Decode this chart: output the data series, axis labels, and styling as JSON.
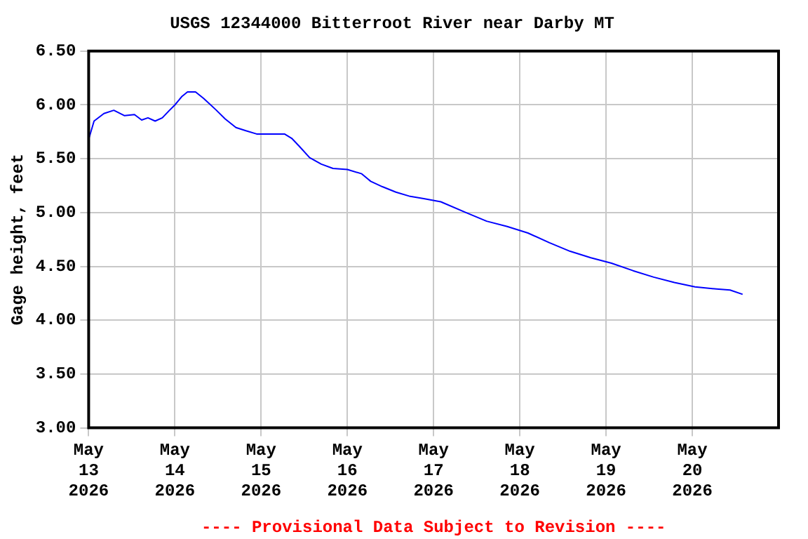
{
  "chart_data": {
    "type": "line",
    "title": "USGS 12344000 Bitterroot River near Darby MT",
    "ylabel": "Gage height, feet",
    "annotations": [
      "---- Provisional Data Subject to Revision ----"
    ],
    "x": [
      "2026-05-13T00:00",
      "2026-05-13T01:30",
      "2026-05-13T04:15",
      "2026-05-13T07:00",
      "2026-05-13T10:00",
      "2026-05-13T12:45",
      "2026-05-13T14:45",
      "2026-05-13T16:30",
      "2026-05-13T18:30",
      "2026-05-13T20:30",
      "2026-05-13T22:30",
      "2026-05-14T00:00",
      "2026-05-14T02:00",
      "2026-05-14T03:30",
      "2026-05-14T05:45",
      "2026-05-14T08:00",
      "2026-05-14T11:15",
      "2026-05-14T14:00",
      "2026-05-14T17:00",
      "2026-05-14T19:45",
      "2026-05-14T22:45",
      "2026-05-15T02:45",
      "2026-05-15T06:30",
      "2026-05-15T08:30",
      "2026-05-15T10:30",
      "2026-05-15T13:30",
      "2026-05-15T16:45",
      "2026-05-15T20:00",
      "2026-05-16T00:00",
      "2026-05-16T04:00",
      "2026-05-16T06:30",
      "2026-05-16T09:45",
      "2026-05-16T13:30",
      "2026-05-16T17:30",
      "2026-05-16T21:15",
      "2026-05-17T02:00",
      "2026-05-17T09:00",
      "2026-05-17T14:45",
      "2026-05-17T20:30",
      "2026-05-18T02:15",
      "2026-05-18T08:15",
      "2026-05-18T14:00",
      "2026-05-18T19:45",
      "2026-05-19T01:30",
      "2026-05-19T07:30",
      "2026-05-19T13:15",
      "2026-05-19T19:00",
      "2026-05-20T00:45",
      "2026-05-20T06:45",
      "2026-05-20T10:30",
      "2026-05-20T14:00"
    ],
    "series": [
      {
        "color": "#0000ff",
        "values": [
          5.68,
          5.85,
          5.92,
          5.95,
          5.9,
          5.91,
          5.86,
          5.88,
          5.85,
          5.88,
          5.95,
          6.0,
          6.08,
          6.12,
          6.12,
          6.06,
          5.96,
          5.87,
          5.79,
          5.76,
          5.73,
          5.73,
          5.73,
          5.69,
          5.62,
          5.51,
          5.45,
          5.41,
          5.4,
          5.36,
          5.29,
          5.24,
          5.19,
          5.15,
          5.13,
          5.1,
          5.0,
          4.92,
          4.87,
          4.81,
          4.72,
          4.64,
          4.58,
          4.53,
          4.46,
          4.4,
          4.35,
          4.31,
          4.29,
          4.28,
          4.24
        ]
      }
    ],
    "xlim": [
      "2026-05-13",
      "2026-05-21"
    ],
    "xticks": [
      {
        "value": "2026-05-13",
        "label": "May\n13\n2026"
      },
      {
        "value": "2026-05-14",
        "label": "May\n14\n2026"
      },
      {
        "value": "2026-05-15",
        "label": "May\n15\n2026"
      },
      {
        "value": "2026-05-16",
        "label": "May\n16\n2026"
      },
      {
        "value": "2026-05-17",
        "label": "May\n17\n2026"
      },
      {
        "value": "2026-05-18",
        "label": "May\n18\n2026"
      },
      {
        "value": "2026-05-19",
        "label": "May\n19\n2026"
      },
      {
        "value": "2026-05-20",
        "label": "May\n20\n2026"
      }
    ],
    "ylim": [
      3.0,
      6.5
    ],
    "yticks": [
      {
        "value": 3.0,
        "label": "3.00"
      },
      {
        "value": 3.5,
        "label": "3.50"
      },
      {
        "value": 4.0,
        "label": "4.00"
      },
      {
        "value": 4.5,
        "label": "4.50"
      },
      {
        "value": 5.0,
        "label": "5.00"
      },
      {
        "value": 5.5,
        "label": "5.50"
      },
      {
        "value": 6.0,
        "label": "6.00"
      },
      {
        "value": 6.5,
        "label": "6.50"
      }
    ],
    "grid": true,
    "legend": false,
    "marker": "none",
    "line_style": "solid"
  }
}
